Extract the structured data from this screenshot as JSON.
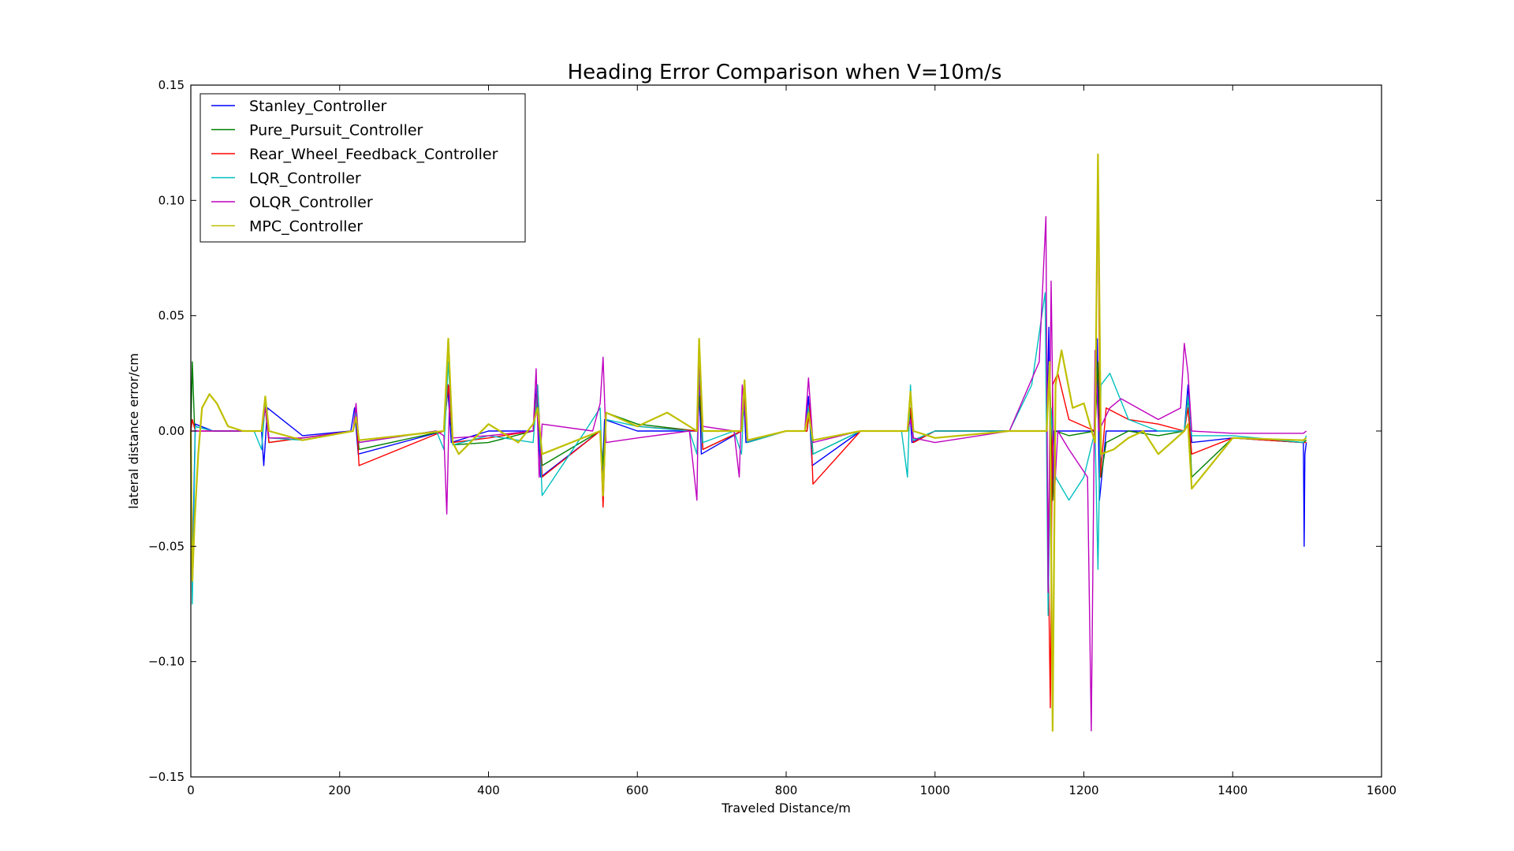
{
  "chart_data": {
    "type": "line",
    "title": "Heading Error Comparison when V=10m/s",
    "xlabel": "Traveled Distance/m",
    "ylabel": "lateral distance error/cm",
    "xlim": [
      0,
      1600
    ],
    "ylim": [
      -0.15,
      0.15
    ],
    "xticks": [
      0,
      200,
      400,
      600,
      800,
      1000,
      1200,
      1400,
      1600
    ],
    "xtick_labels": [
      "0",
      "200",
      "400",
      "600",
      "800",
      "1000",
      "1200",
      "1400",
      "1600"
    ],
    "yticks": [
      -0.15,
      -0.1,
      -0.05,
      0.0,
      0.05,
      0.1,
      0.15
    ],
    "ytick_labels": [
      "−0.15",
      "−0.10",
      "−0.05",
      "0.00",
      "0.05",
      "0.10",
      "0.15"
    ],
    "grid": false,
    "legend_position": "top-left",
    "series": [
      {
        "name": "Stanley_Controller",
        "color": "#0000ff",
        "x": [
          0,
          2,
          6,
          30,
          95,
          98,
          103,
          150,
          215,
          220,
          225,
          340,
          345,
          350,
          400,
          460,
          465,
          470,
          550,
          553,
          556,
          600,
          680,
          683,
          686,
          740,
          743,
          746,
          800,
          825,
          830,
          835,
          900,
          963,
          966,
          969,
          1000,
          1100,
          1150,
          1153,
          1156,
          1160,
          1180,
          1215,
          1218,
          1221,
          1230,
          1260,
          1300,
          1335,
          1340,
          1345,
          1400,
          1495,
          1496,
          1497,
          1499
        ],
        "y": [
          0.0,
          -0.06,
          0.003,
          0.0,
          0.0,
          -0.015,
          0.01,
          -0.002,
          0.0,
          0.01,
          -0.01,
          0.0,
          0.02,
          -0.005,
          0.0,
          0.0,
          0.02,
          -0.02,
          0.0,
          -0.02,
          0.005,
          0.0,
          0.0,
          0.02,
          -0.01,
          0.0,
          0.015,
          -0.005,
          0.0,
          0.0,
          0.015,
          -0.015,
          0.0,
          0.0,
          0.01,
          -0.005,
          0.0,
          0.0,
          0.0,
          0.045,
          -0.04,
          0.0,
          0.0,
          0.0,
          0.04,
          -0.03,
          0.0,
          0.0,
          0.0,
          0.0,
          0.02,
          -0.005,
          -0.003,
          -0.005,
          -0.05,
          -0.01,
          -0.005
        ]
      },
      {
        "name": "Pure_Pursuit_Controller",
        "color": "#008000",
        "x": [
          0,
          2,
          5,
          30,
          95,
          100,
          105,
          150,
          218,
          222,
          226,
          340,
          346,
          352,
          400,
          460,
          466,
          472,
          550,
          554,
          558,
          600,
          680,
          684,
          688,
          740,
          744,
          748,
          800,
          828,
          832,
          836,
          900,
          963,
          967,
          971,
          1000,
          1100,
          1150,
          1154,
          1158,
          1162,
          1180,
          1215,
          1219,
          1223,
          1230,
          1260,
          1300,
          1335,
          1340,
          1345,
          1400,
          1495,
          1499
        ],
        "y": [
          0.0,
          0.03,
          0.002,
          0.0,
          0.0,
          0.01,
          -0.005,
          -0.003,
          0.0,
          0.008,
          -0.008,
          0.0,
          0.02,
          -0.006,
          -0.005,
          0.0,
          0.015,
          -0.015,
          0.0,
          -0.015,
          0.008,
          0.003,
          0.0,
          0.015,
          -0.008,
          0.0,
          0.012,
          -0.005,
          0.0,
          0.0,
          0.01,
          -0.01,
          0.0,
          0.0,
          0.008,
          -0.004,
          0.0,
          0.0,
          0.0,
          0.03,
          -0.03,
          0.0,
          -0.002,
          0.0,
          0.03,
          -0.02,
          -0.005,
          0.0,
          -0.002,
          0.0,
          0.015,
          -0.02,
          -0.003,
          -0.005,
          -0.004
        ]
      },
      {
        "name": "Rear_Wheel_Feedback_Controller",
        "color": "#ff0000",
        "x": [
          0,
          2,
          6,
          30,
          95,
          100,
          105,
          150,
          218,
          222,
          226,
          340,
          346,
          352,
          400,
          460,
          466,
          472,
          550,
          554,
          558,
          600,
          680,
          684,
          688,
          740,
          744,
          748,
          800,
          828,
          832,
          836,
          900,
          963,
          967,
          971,
          1000,
          1100,
          1150,
          1155,
          1158,
          1165,
          1180,
          1215,
          1219,
          1222,
          1230,
          1260,
          1300,
          1335,
          1340,
          1345,
          1400,
          1495,
          1499
        ],
        "y": [
          0.0,
          0.005,
          0.0,
          0.0,
          0.0,
          0.01,
          -0.005,
          -0.003,
          0.0,
          0.01,
          -0.015,
          0.0,
          0.02,
          -0.005,
          -0.003,
          0.0,
          0.02,
          -0.02,
          0.0,
          -0.033,
          0.008,
          0.002,
          0.0,
          0.025,
          -0.008,
          0.0,
          0.015,
          -0.005,
          0.0,
          0.0,
          0.012,
          -0.023,
          0.0,
          0.0,
          0.01,
          -0.005,
          0.0,
          0.0,
          0.0,
          -0.12,
          0.02,
          0.025,
          0.005,
          0.0,
          0.11,
          -0.02,
          0.01,
          0.005,
          0.003,
          0.0,
          0.01,
          -0.01,
          -0.003,
          -0.005,
          -0.005
        ]
      },
      {
        "name": "LQR_Controller",
        "color": "#00bfbf",
        "x": [
          0,
          2,
          6,
          30,
          85,
          95,
          100,
          105,
          150,
          218,
          222,
          226,
          330,
          340,
          346,
          352,
          400,
          460,
          466,
          472,
          530,
          550,
          554,
          558,
          600,
          670,
          680,
          684,
          688,
          730,
          740,
          744,
          748,
          800,
          825,
          830,
          836,
          900,
          955,
          963,
          967,
          971,
          1000,
          1100,
          1130,
          1148,
          1152,
          1156,
          1162,
          1180,
          1200,
          1215,
          1219,
          1223,
          1235,
          1260,
          1300,
          1335,
          1340,
          1345,
          1400,
          1495,
          1499
        ],
        "y": [
          0.0,
          -0.075,
          0.002,
          0.0,
          0.0,
          -0.008,
          0.012,
          -0.003,
          -0.004,
          0.0,
          0.008,
          -0.005,
          0.0,
          -0.008,
          0.03,
          -0.006,
          -0.002,
          -0.005,
          0.02,
          -0.028,
          0.0,
          0.01,
          -0.028,
          0.005,
          0.002,
          0.0,
          -0.01,
          0.03,
          -0.005,
          0.0,
          -0.01,
          0.02,
          -0.005,
          0.0,
          0.0,
          0.01,
          -0.01,
          0.0,
          0.0,
          -0.02,
          0.02,
          -0.004,
          0.0,
          0.0,
          0.02,
          0.06,
          -0.08,
          0.01,
          -0.02,
          -0.03,
          -0.02,
          0.0,
          -0.06,
          0.02,
          0.025,
          0.005,
          0.0,
          0.0,
          0.015,
          -0.002,
          -0.002,
          -0.005,
          -0.002
        ]
      },
      {
        "name": "OLQR_Controller",
        "color": "#bf00bf",
        "x": [
          0,
          30,
          95,
          100,
          105,
          150,
          218,
          222,
          226,
          330,
          340,
          344,
          348,
          352,
          400,
          460,
          464,
          468,
          472,
          540,
          550,
          554,
          558,
          600,
          670,
          680,
          683,
          688,
          730,
          737,
          741,
          748,
          800,
          825,
          830,
          836,
          900,
          963,
          967,
          971,
          1000,
          1100,
          1140,
          1149,
          1152,
          1156,
          1160,
          1165,
          1180,
          1205,
          1210,
          1215,
          1220,
          1235,
          1250,
          1300,
          1330,
          1335,
          1340,
          1345,
          1400,
          1495,
          1499
        ],
        "y": [
          0.0,
          0.0,
          0.0,
          0.01,
          -0.003,
          -0.003,
          0.0,
          0.012,
          -0.005,
          0.0,
          -0.002,
          -0.036,
          0.02,
          -0.003,
          -0.002,
          0.0,
          0.027,
          -0.02,
          0.003,
          0.0,
          0.012,
          0.032,
          -0.005,
          -0.003,
          0.0,
          -0.03,
          0.032,
          0.002,
          0.0,
          -0.02,
          0.02,
          -0.004,
          0.0,
          0.0,
          0.023,
          -0.005,
          0.0,
          0.0,
          0.005,
          -0.003,
          -0.005,
          0.0,
          0.03,
          0.093,
          -0.07,
          0.065,
          -0.03,
          0.0,
          -0.008,
          -0.02,
          -0.13,
          0.035,
          0.0,
          0.01,
          0.014,
          0.005,
          0.01,
          0.038,
          0.025,
          0.0,
          -0.001,
          -0.001,
          0.0
        ]
      },
      {
        "name": "MPC_Controller",
        "color": "#bfbf00",
        "x": [
          0,
          2,
          5,
          10,
          15,
          25,
          35,
          50,
          70,
          95,
          100,
          105,
          150,
          218,
          222,
          226,
          340,
          346,
          352,
          360,
          400,
          440,
          460,
          466,
          472,
          550,
          554,
          558,
          600,
          640,
          680,
          683,
          688,
          740,
          744,
          748,
          800,
          825,
          830,
          836,
          900,
          963,
          967,
          971,
          1000,
          1100,
          1150,
          1154,
          1158,
          1162,
          1170,
          1185,
          1200,
          1215,
          1219,
          1223,
          1240,
          1260,
          1280,
          1300,
          1335,
          1340,
          1345,
          1400,
          1495,
          1499
        ],
        "y": [
          0.0,
          -0.065,
          -0.04,
          -0.01,
          0.01,
          0.016,
          0.012,
          0.002,
          0.0,
          0.0,
          0.015,
          0.0,
          -0.004,
          0.0,
          0.006,
          -0.004,
          0.0,
          0.04,
          -0.005,
          -0.01,
          0.003,
          -0.005,
          0.003,
          0.01,
          -0.01,
          0.0,
          -0.028,
          0.008,
          0.002,
          0.008,
          0.0,
          0.04,
          0.0,
          0.0,
          0.022,
          -0.004,
          0.0,
          0.0,
          0.008,
          -0.004,
          0.0,
          0.0,
          0.017,
          0.0,
          -0.003,
          0.0,
          0.0,
          0.03,
          -0.13,
          0.02,
          0.035,
          0.01,
          0.012,
          -0.005,
          0.12,
          -0.01,
          -0.008,
          -0.003,
          0.0,
          -0.01,
          0.0,
          0.003,
          -0.025,
          -0.003,
          -0.004,
          -0.003
        ]
      }
    ]
  }
}
